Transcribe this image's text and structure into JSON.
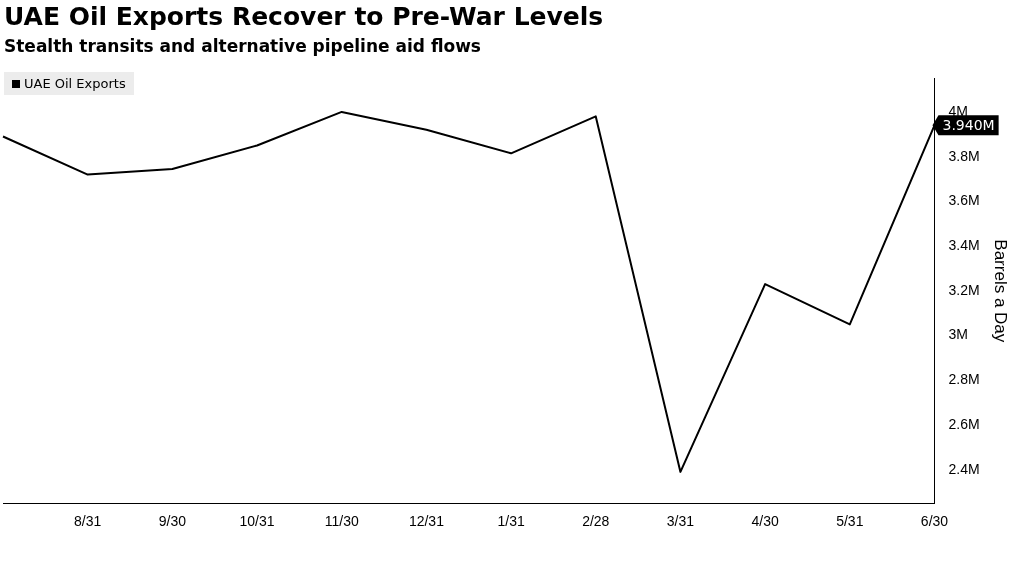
{
  "chart_data": {
    "type": "line",
    "title": "UAE Oil Exports Recover to Pre-War Levels",
    "subtitle": "Stealth transits and alternative pipeline aid flows",
    "ylabel": "Barrels a Day",
    "categories": [
      null,
      "8/31",
      "9/30",
      "10/31",
      "11/30",
      "12/31",
      "1/31",
      "2/28",
      "3/31",
      "4/30",
      "5/31",
      "6/30"
    ],
    "series": [
      {
        "name": "UAE Oil Exports",
        "color": "#000000",
        "values": [
          3.89,
          3.72,
          3.745,
          3.85,
          4.0,
          3.92,
          3.815,
          3.98,
          2.39,
          3.23,
          3.05,
          3.94
        ]
      }
    ],
    "ylim": [
      2.25,
      4.15
    ],
    "yticks": [
      {
        "value": 2.4,
        "label": "2.4M"
      },
      {
        "value": 2.6,
        "label": "2.6M"
      },
      {
        "value": 2.8,
        "label": "2.8M"
      },
      {
        "value": 3,
        "label": "3M"
      },
      {
        "value": 3.2,
        "label": "3.2M"
      },
      {
        "value": 3.4,
        "label": "3.4M"
      },
      {
        "value": 3.6,
        "label": "3.6M"
      },
      {
        "value": 3.8,
        "label": "3.8M"
      },
      {
        "value": 4,
        "label": "4M"
      }
    ],
    "annotations": [
      {
        "text": "3.940M",
        "x": "6/30",
        "y": 3.94
      }
    ],
    "legend": "top left",
    "grid": false,
    "marker": "none",
    "line_style": "solid"
  }
}
